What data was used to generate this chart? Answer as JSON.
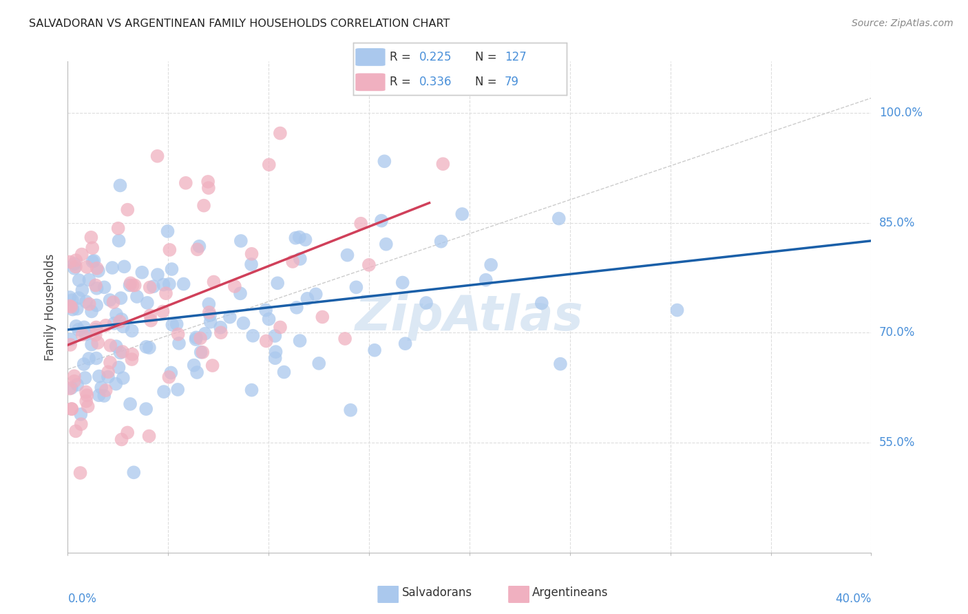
{
  "title": "SALVADORAN VS ARGENTINEAN FAMILY HOUSEHOLDS CORRELATION CHART",
  "source": "Source: ZipAtlas.com",
  "ylabel": "Family Households",
  "ytick_values": [
    0.55,
    0.7,
    0.85,
    1.0
  ],
  "ytick_labels": [
    "55.0%",
    "70.0%",
    "85.0%",
    "100.0%"
  ],
  "xlim": [
    0.0,
    0.4
  ],
  "ylim": [
    0.4,
    1.07
  ],
  "legend_blue_R": "0.225",
  "legend_blue_N": "127",
  "legend_pink_R": "0.336",
  "legend_pink_N": "79",
  "legend_label_salvadorans": "Salvadorans",
  "legend_label_argentineans": "Argentineans",
  "blue_color": "#aac8ed",
  "pink_color": "#f0b0c0",
  "blue_line_color": "#1a5fa8",
  "pink_line_color": "#d0405a",
  "value_color": "#4a90d9",
  "background_color": "#ffffff",
  "grid_color": "#dddddd",
  "blue_seed": 42,
  "pink_seed": 99,
  "blue_n": 127,
  "pink_n": 79,
  "blue_r": 0.225,
  "pink_r": 0.336
}
